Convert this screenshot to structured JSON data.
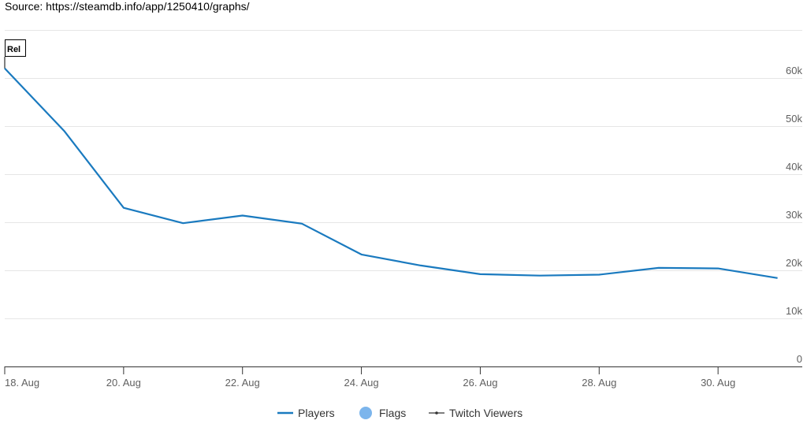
{
  "source_text": "Source: https://steamdb.info/app/1250410/graphs/",
  "chart_data": {
    "type": "line",
    "x": [
      "2020-08-18",
      "2020-08-19",
      "2020-08-20",
      "2020-08-21",
      "2020-08-22",
      "2020-08-23",
      "2020-08-24",
      "2020-08-25",
      "2020-08-26",
      "2020-08-27",
      "2020-08-28",
      "2020-08-29",
      "2020-08-30",
      "2020-08-31"
    ],
    "series": [
      {
        "name": "Players",
        "color": "#1a7abf",
        "values": [
          62000,
          49000,
          33000,
          29800,
          31400,
          29700,
          23300,
          21000,
          19200,
          18900,
          19100,
          20500,
          20400,
          18400
        ]
      }
    ],
    "x_ticks": [
      "18. Aug",
      "20. Aug",
      "22. Aug",
      "24. Aug",
      "26. Aug",
      "28. Aug",
      "30. Aug"
    ],
    "x_tick_dates": [
      "2020-08-18",
      "2020-08-20",
      "2020-08-22",
      "2020-08-24",
      "2020-08-26",
      "2020-08-28",
      "2020-08-30"
    ],
    "y_ticks": [
      "0",
      "10k",
      "20k",
      "30k",
      "40k",
      "50k",
      "60k"
    ],
    "y_tick_values": [
      0,
      10000,
      20000,
      30000,
      40000,
      50000,
      60000
    ],
    "ylim": [
      0,
      70000
    ],
    "x_range": [
      "2020-08-18",
      "2020-08-31T10:00"
    ],
    "grid": true,
    "legend_position": "bottom-center",
    "legend": [
      {
        "label": "Players",
        "symbol": "line",
        "color": "#1a7abf"
      },
      {
        "label": "Flags",
        "symbol": "circle",
        "color": "#7cb5ec"
      },
      {
        "label": "Twitch Viewers",
        "symbol": "line-marker",
        "color": "#333333"
      }
    ],
    "flags": [
      {
        "label": "Rel",
        "date": "2020-08-18"
      }
    ]
  }
}
